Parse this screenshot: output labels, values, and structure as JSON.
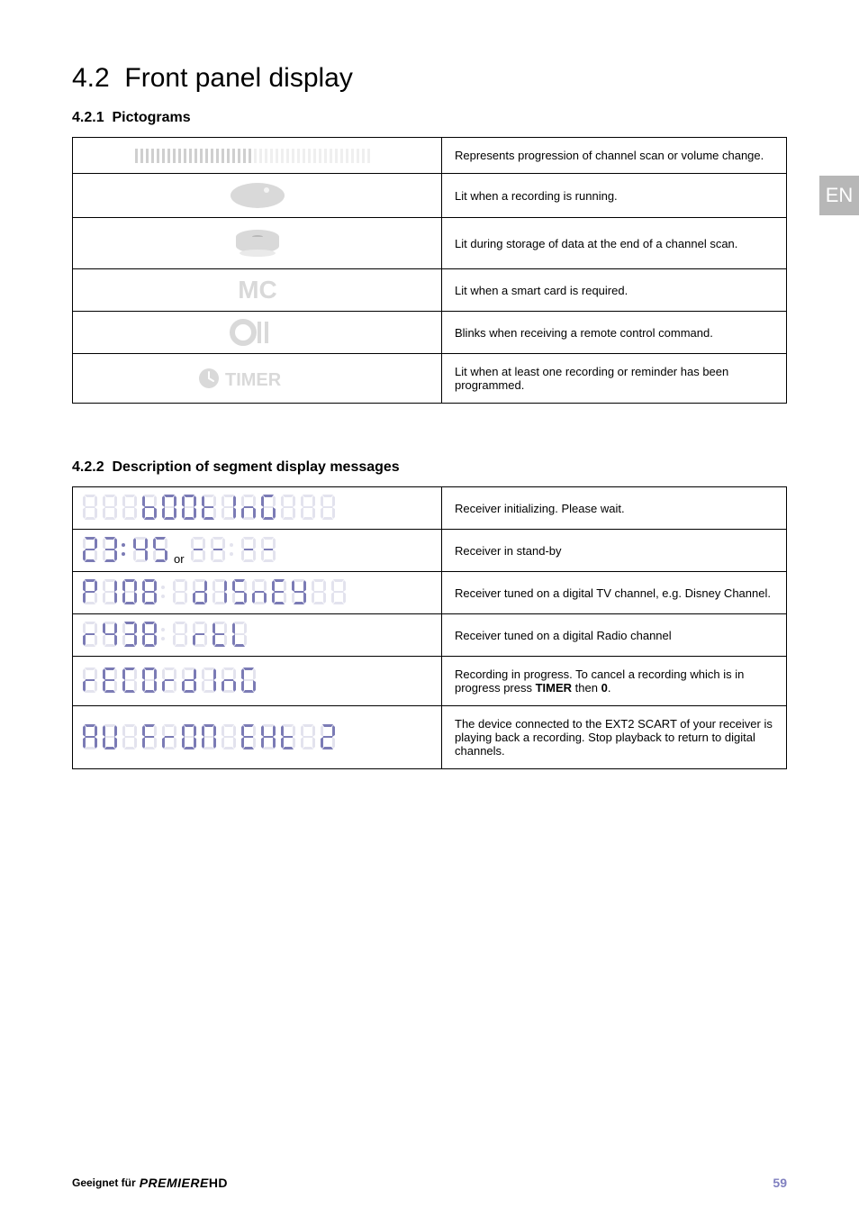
{
  "section": {
    "number": "4.2",
    "title": "Front panel display"
  },
  "subsection1": {
    "number": "4.2.1",
    "title": "Pictograms"
  },
  "subsection2": {
    "number": "4.2.2",
    "title": "Description of segment display messages"
  },
  "badge": "EN",
  "colors": {
    "seg_on": "#7b7bb5",
    "seg_off": "#e3e3ee",
    "badge_bg": "#b7b7b7",
    "page_num": "#8080c0"
  },
  "pictograms": [
    {
      "icon": "progress-bar",
      "desc": "Represents progression of channel scan or volume change."
    },
    {
      "icon": "rec-oval",
      "desc": "Lit when a recording is running."
    },
    {
      "icon": "disc",
      "desc": "Lit during storage of data at the end of a channel scan."
    },
    {
      "icon": "mc-text",
      "desc": "Lit when a smart card is required."
    },
    {
      "icon": "remote-blink",
      "desc": "Blinks when receiving a remote control command."
    },
    {
      "icon": "timer-text",
      "desc": "Lit when at least one recording or reminder has been programmed."
    }
  ],
  "segments": [
    {
      "text": "   BOOTING   ",
      "variant": "booting",
      "desc": "Receiver initializing. Please wait."
    },
    {
      "text": "clock-or-blank",
      "variant": "standby",
      "desc": "Receiver in stand-by"
    },
    {
      "text": "P108 DISNEY  ",
      "variant": "tv",
      "desc": "Receiver tuned on a digital TV channel, e.g. Disney Channel."
    },
    {
      "text": "R438 RTL",
      "variant": "radio",
      "desc": "Receiver tuned on a digital Radio channel"
    },
    {
      "text": "RECORDING",
      "variant": "recording",
      "desc_html": "Recording in progress. To cancel a recording which is in progress press <b>TIMER</b> then <b>0</b>."
    },
    {
      "text": "AV FROM EXT 2",
      "variant": "ext",
      "desc": "The device connected to the EXT2 SCART of your receiver is playing back a recording. Stop playback to return to digital channels."
    }
  ],
  "footer": {
    "left_prefix": "Geeignet für",
    "brand": "PREMIERE",
    "brand_suffix": "HD",
    "page": "59"
  },
  "seg_defs": {
    "off": [
      0,
      0,
      0,
      0,
      0,
      0,
      0
    ],
    "0": [
      1,
      1,
      1,
      1,
      1,
      1,
      0
    ],
    "1": [
      0,
      1,
      1,
      0,
      0,
      0,
      0
    ],
    "2": [
      1,
      1,
      0,
      1,
      1,
      0,
      1
    ],
    "3": [
      1,
      1,
      1,
      1,
      0,
      0,
      1
    ],
    "4": [
      0,
      1,
      1,
      0,
      0,
      1,
      1
    ],
    "5": [
      1,
      0,
      1,
      1,
      0,
      1,
      1
    ],
    "6": [
      1,
      0,
      1,
      1,
      1,
      1,
      1
    ],
    "7": [
      1,
      1,
      1,
      0,
      0,
      0,
      0
    ],
    "8": [
      1,
      1,
      1,
      1,
      1,
      1,
      1
    ],
    "9": [
      1,
      1,
      1,
      1,
      0,
      1,
      1
    ],
    "A": [
      1,
      1,
      1,
      0,
      1,
      1,
      1
    ],
    "B": [
      0,
      0,
      1,
      1,
      1,
      1,
      1
    ],
    "C": [
      1,
      0,
      0,
      1,
      1,
      1,
      0
    ],
    "D": [
      0,
      1,
      1,
      1,
      1,
      0,
      1
    ],
    "E": [
      1,
      0,
      0,
      1,
      1,
      1,
      1
    ],
    "F": [
      1,
      0,
      0,
      0,
      1,
      1,
      1
    ],
    "G": [
      1,
      0,
      1,
      1,
      1,
      1,
      0
    ],
    "I": [
      0,
      1,
      1,
      0,
      0,
      0,
      0
    ],
    "L": [
      0,
      0,
      0,
      1,
      1,
      1,
      0
    ],
    "M": [
      1,
      1,
      1,
      0,
      1,
      1,
      0
    ],
    "N": [
      0,
      0,
      1,
      0,
      1,
      0,
      1
    ],
    "O": [
      1,
      1,
      1,
      1,
      1,
      1,
      0
    ],
    "P": [
      1,
      1,
      0,
      0,
      1,
      1,
      1
    ],
    "R": [
      0,
      0,
      0,
      0,
      1,
      0,
      1
    ],
    "S": [
      1,
      0,
      1,
      1,
      0,
      1,
      1
    ],
    "T": [
      0,
      0,
      0,
      1,
      1,
      1,
      1
    ],
    "V": [
      0,
      1,
      1,
      1,
      1,
      1,
      0
    ],
    "X": [
      0,
      1,
      1,
      0,
      1,
      1,
      1
    ],
    "Y": [
      0,
      1,
      1,
      1,
      0,
      1,
      1
    ],
    "-": [
      0,
      0,
      0,
      0,
      0,
      0,
      1
    ],
    " ": [
      0,
      0,
      0,
      0,
      0,
      0,
      0
    ]
  }
}
